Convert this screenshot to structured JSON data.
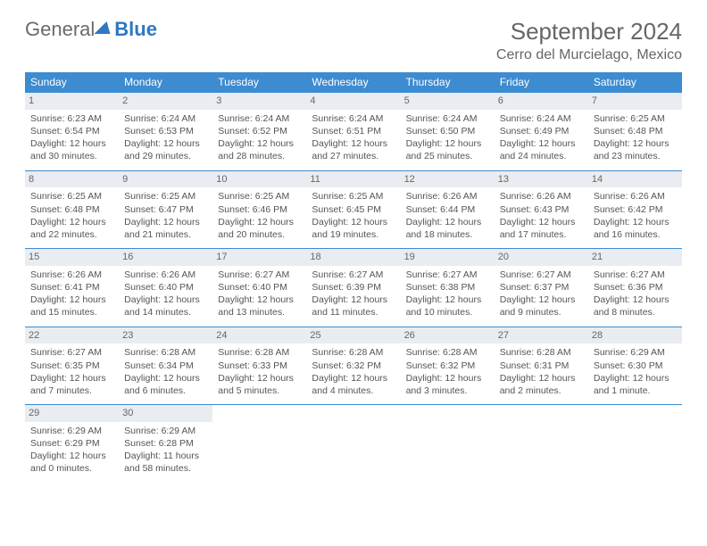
{
  "logo": {
    "text1": "General",
    "text2": "Blue"
  },
  "header": {
    "month": "September 2024",
    "location": "Cerro del Murcielago, Mexico"
  },
  "weekdays": [
    "Sunday",
    "Monday",
    "Tuesday",
    "Wednesday",
    "Thursday",
    "Friday",
    "Saturday"
  ],
  "colors": {
    "header_bg": "#3d8bd0",
    "header_fg": "#ffffff",
    "daynum_bg": "#e9edf1",
    "border": "#3d8bd0",
    "text": "#555555",
    "logo_blue": "#2f78c2"
  },
  "weeks": [
    [
      {
        "day": "1",
        "sunrise": "6:23 AM",
        "sunset": "6:54 PM",
        "daylight": "12 hours and 30 minutes."
      },
      {
        "day": "2",
        "sunrise": "6:24 AM",
        "sunset": "6:53 PM",
        "daylight": "12 hours and 29 minutes."
      },
      {
        "day": "3",
        "sunrise": "6:24 AM",
        "sunset": "6:52 PM",
        "daylight": "12 hours and 28 minutes."
      },
      {
        "day": "4",
        "sunrise": "6:24 AM",
        "sunset": "6:51 PM",
        "daylight": "12 hours and 27 minutes."
      },
      {
        "day": "5",
        "sunrise": "6:24 AM",
        "sunset": "6:50 PM",
        "daylight": "12 hours and 25 minutes."
      },
      {
        "day": "6",
        "sunrise": "6:24 AM",
        "sunset": "6:49 PM",
        "daylight": "12 hours and 24 minutes."
      },
      {
        "day": "7",
        "sunrise": "6:25 AM",
        "sunset": "6:48 PM",
        "daylight": "12 hours and 23 minutes."
      }
    ],
    [
      {
        "day": "8",
        "sunrise": "6:25 AM",
        "sunset": "6:48 PM",
        "daylight": "12 hours and 22 minutes."
      },
      {
        "day": "9",
        "sunrise": "6:25 AM",
        "sunset": "6:47 PM",
        "daylight": "12 hours and 21 minutes."
      },
      {
        "day": "10",
        "sunrise": "6:25 AM",
        "sunset": "6:46 PM",
        "daylight": "12 hours and 20 minutes."
      },
      {
        "day": "11",
        "sunrise": "6:25 AM",
        "sunset": "6:45 PM",
        "daylight": "12 hours and 19 minutes."
      },
      {
        "day": "12",
        "sunrise": "6:26 AM",
        "sunset": "6:44 PM",
        "daylight": "12 hours and 18 minutes."
      },
      {
        "day": "13",
        "sunrise": "6:26 AM",
        "sunset": "6:43 PM",
        "daylight": "12 hours and 17 minutes."
      },
      {
        "day": "14",
        "sunrise": "6:26 AM",
        "sunset": "6:42 PM",
        "daylight": "12 hours and 16 minutes."
      }
    ],
    [
      {
        "day": "15",
        "sunrise": "6:26 AM",
        "sunset": "6:41 PM",
        "daylight": "12 hours and 15 minutes."
      },
      {
        "day": "16",
        "sunrise": "6:26 AM",
        "sunset": "6:40 PM",
        "daylight": "12 hours and 14 minutes."
      },
      {
        "day": "17",
        "sunrise": "6:27 AM",
        "sunset": "6:40 PM",
        "daylight": "12 hours and 13 minutes."
      },
      {
        "day": "18",
        "sunrise": "6:27 AM",
        "sunset": "6:39 PM",
        "daylight": "12 hours and 11 minutes."
      },
      {
        "day": "19",
        "sunrise": "6:27 AM",
        "sunset": "6:38 PM",
        "daylight": "12 hours and 10 minutes."
      },
      {
        "day": "20",
        "sunrise": "6:27 AM",
        "sunset": "6:37 PM",
        "daylight": "12 hours and 9 minutes."
      },
      {
        "day": "21",
        "sunrise": "6:27 AM",
        "sunset": "6:36 PM",
        "daylight": "12 hours and 8 minutes."
      }
    ],
    [
      {
        "day": "22",
        "sunrise": "6:27 AM",
        "sunset": "6:35 PM",
        "daylight": "12 hours and 7 minutes."
      },
      {
        "day": "23",
        "sunrise": "6:28 AM",
        "sunset": "6:34 PM",
        "daylight": "12 hours and 6 minutes."
      },
      {
        "day": "24",
        "sunrise": "6:28 AM",
        "sunset": "6:33 PM",
        "daylight": "12 hours and 5 minutes."
      },
      {
        "day": "25",
        "sunrise": "6:28 AM",
        "sunset": "6:32 PM",
        "daylight": "12 hours and 4 minutes."
      },
      {
        "day": "26",
        "sunrise": "6:28 AM",
        "sunset": "6:32 PM",
        "daylight": "12 hours and 3 minutes."
      },
      {
        "day": "27",
        "sunrise": "6:28 AM",
        "sunset": "6:31 PM",
        "daylight": "12 hours and 2 minutes."
      },
      {
        "day": "28",
        "sunrise": "6:29 AM",
        "sunset": "6:30 PM",
        "daylight": "12 hours and 1 minute."
      }
    ],
    [
      {
        "day": "29",
        "sunrise": "6:29 AM",
        "sunset": "6:29 PM",
        "daylight": "12 hours and 0 minutes."
      },
      {
        "day": "30",
        "sunrise": "6:29 AM",
        "sunset": "6:28 PM",
        "daylight": "11 hours and 58 minutes."
      },
      null,
      null,
      null,
      null,
      null
    ]
  ],
  "labels": {
    "sunrise_prefix": "Sunrise: ",
    "sunset_prefix": "Sunset: ",
    "daylight_prefix": "Daylight: "
  }
}
